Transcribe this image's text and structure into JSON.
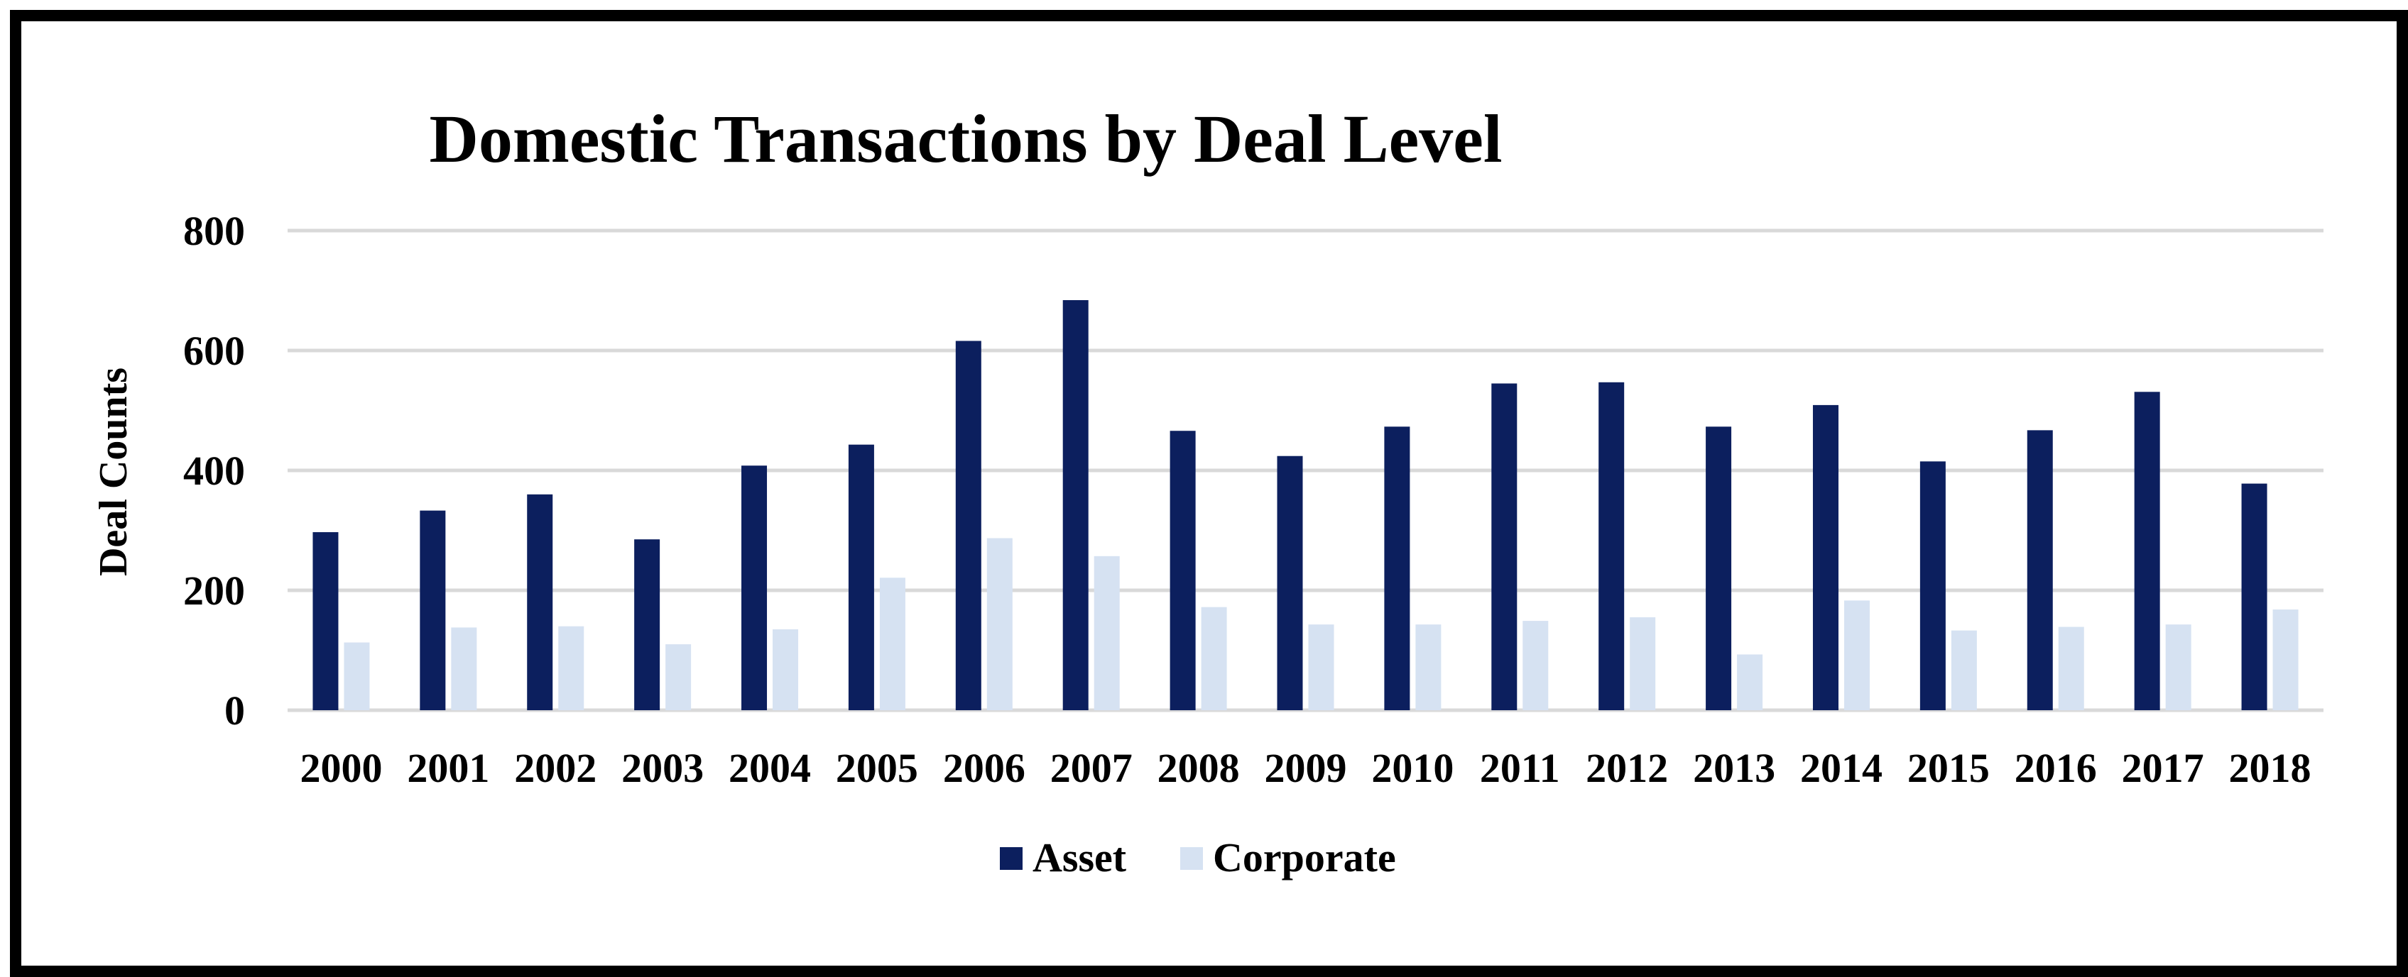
{
  "chart_data": {
    "type": "bar",
    "title": "Domestic Transactions by Deal Level",
    "xlabel": "",
    "ylabel": "Deal Counts",
    "ylim": [
      0,
      800
    ],
    "yticks": [
      "0",
      "200",
      "400",
      "600",
      "800"
    ],
    "grid": true,
    "legend_position": "bottom",
    "categories": [
      "2000",
      "2001",
      "2002",
      "2003",
      "2004",
      "2005",
      "2006",
      "2007",
      "2008",
      "2009",
      "2010",
      "2011",
      "2012",
      "2013",
      "2014",
      "2015",
      "2016",
      "2017",
      "2018"
    ],
    "series": [
      {
        "name": "Asset",
        "color": "#0c1f5e",
        "values": [
          297,
          333,
          360,
          285,
          408,
          443,
          616,
          684,
          466,
          424,
          473,
          545,
          547,
          473,
          509,
          415,
          467,
          531,
          378
        ]
      },
      {
        "name": "Corporate",
        "color": "#d6e2f2",
        "values": [
          113,
          138,
          140,
          110,
          135,
          221,
          287,
          257,
          172,
          143,
          143,
          149,
          155,
          93,
          183,
          133,
          139,
          143,
          168
        ]
      }
    ]
  }
}
